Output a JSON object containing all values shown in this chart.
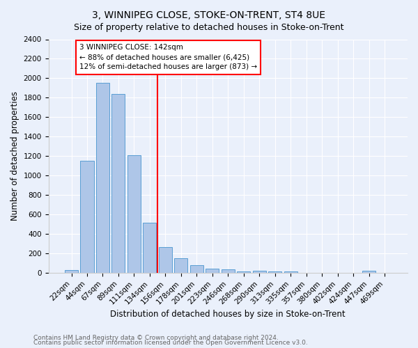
{
  "title": "3, WINNIPEG CLOSE, STOKE-ON-TRENT, ST4 8UE",
  "subtitle": "Size of property relative to detached houses in Stoke-on-Trent",
  "xlabel": "Distribution of detached houses by size in Stoke-on-Trent",
  "ylabel": "Number of detached properties",
  "bar_labels": [
    "22sqm",
    "44sqm",
    "67sqm",
    "89sqm",
    "111sqm",
    "134sqm",
    "156sqm",
    "178sqm",
    "201sqm",
    "223sqm",
    "246sqm",
    "268sqm",
    "290sqm",
    "313sqm",
    "335sqm",
    "357sqm",
    "380sqm",
    "402sqm",
    "424sqm",
    "447sqm",
    "469sqm"
  ],
  "bar_values": [
    30,
    1150,
    1950,
    1840,
    1210,
    520,
    265,
    150,
    80,
    43,
    38,
    17,
    22,
    18,
    18,
    4,
    4,
    4,
    4,
    22,
    4
  ],
  "bar_color": "#aec6e8",
  "bar_edgecolor": "#5a9fd4",
  "redline_bin_index": 5,
  "annotation_text": "3 WINNIPEG CLOSE: 142sqm\n← 88% of detached houses are smaller (6,425)\n12% of semi-detached houses are larger (873) →",
  "ylim": [
    0,
    2400
  ],
  "yticks": [
    0,
    200,
    400,
    600,
    800,
    1000,
    1200,
    1400,
    1600,
    1800,
    2000,
    2200,
    2400
  ],
  "footnote1": "Contains HM Land Registry data © Crown copyright and database right 2024.",
  "footnote2": "Contains public sector information licensed under the Open Government Licence v3.0.",
  "background_color": "#eaf0fb",
  "grid_color": "#ffffff",
  "title_fontsize": 10,
  "subtitle_fontsize": 9,
  "axis_label_fontsize": 8.5,
  "tick_fontsize": 7.5,
  "footnote_fontsize": 6.5
}
